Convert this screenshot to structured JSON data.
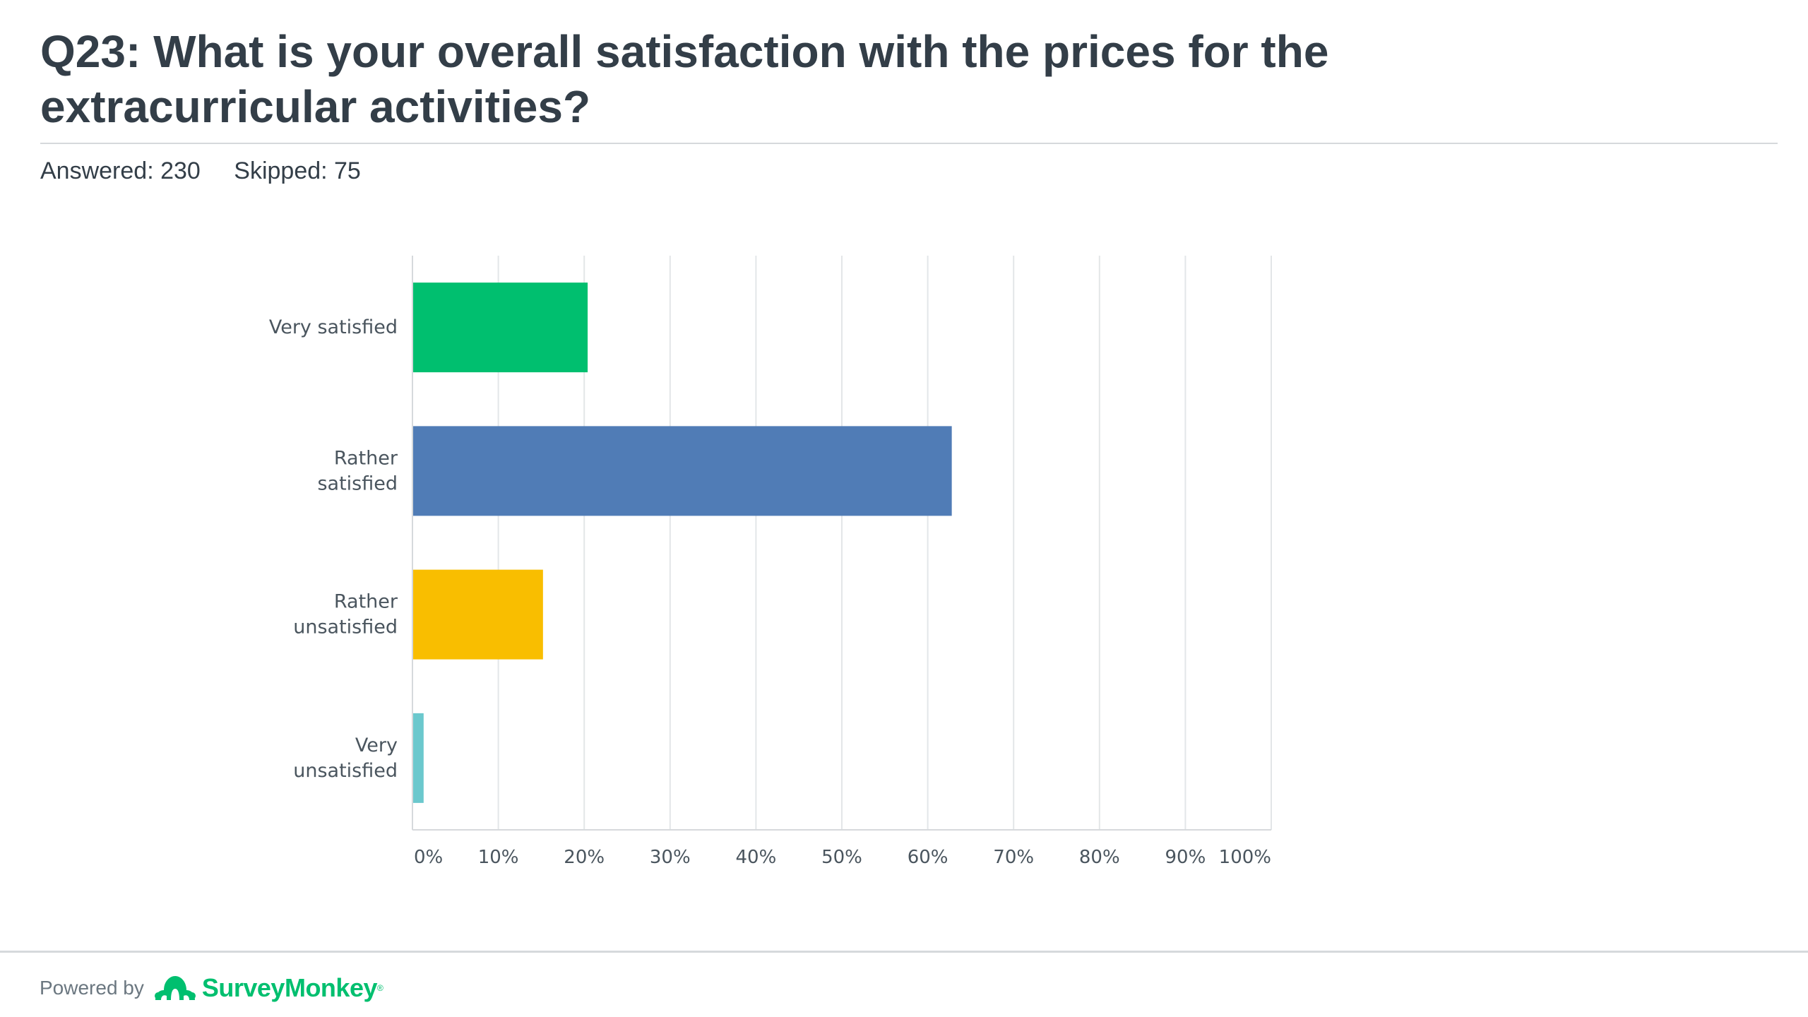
{
  "question": {
    "title": "Q23: What is your overall satisfaction with the prices for the extracurricular activities?",
    "answered": "Answered: 230",
    "skipped": "Skipped: 75"
  },
  "footer": {
    "powered_by": "Powered by",
    "brand": "SurveyMonkey",
    "brand_mark": "®"
  },
  "colors": {
    "very_satisfied": "#00bf6f",
    "rather_satisfied": "#507cb6",
    "rather_unsatisfied": "#f9be00",
    "very_unsatisfied": "#6bc8cd"
  },
  "chart_data": {
    "type": "bar",
    "orientation": "horizontal",
    "categories": [
      "Very satisfied",
      "Rather satisfied",
      "Rather unsatisfied",
      "Very unsatisfied"
    ],
    "category_lines": [
      [
        "Very satisfied"
      ],
      [
        "Rather",
        "satisfied"
      ],
      [
        "Rather",
        "unsatisfied"
      ],
      [
        "Very",
        "unsatisfied"
      ]
    ],
    "values": [
      20.4,
      62.8,
      15.2,
      1.3
    ],
    "colors": [
      "#00bf6f",
      "#507cb6",
      "#f9be00",
      "#6bc8cd"
    ],
    "xlim": [
      0,
      100
    ],
    "xticks": [
      "0%",
      "10%",
      "20%",
      "30%",
      "40%",
      "50%",
      "60%",
      "70%",
      "80%",
      "90%",
      "100%"
    ],
    "grid": true,
    "legend": "none"
  }
}
